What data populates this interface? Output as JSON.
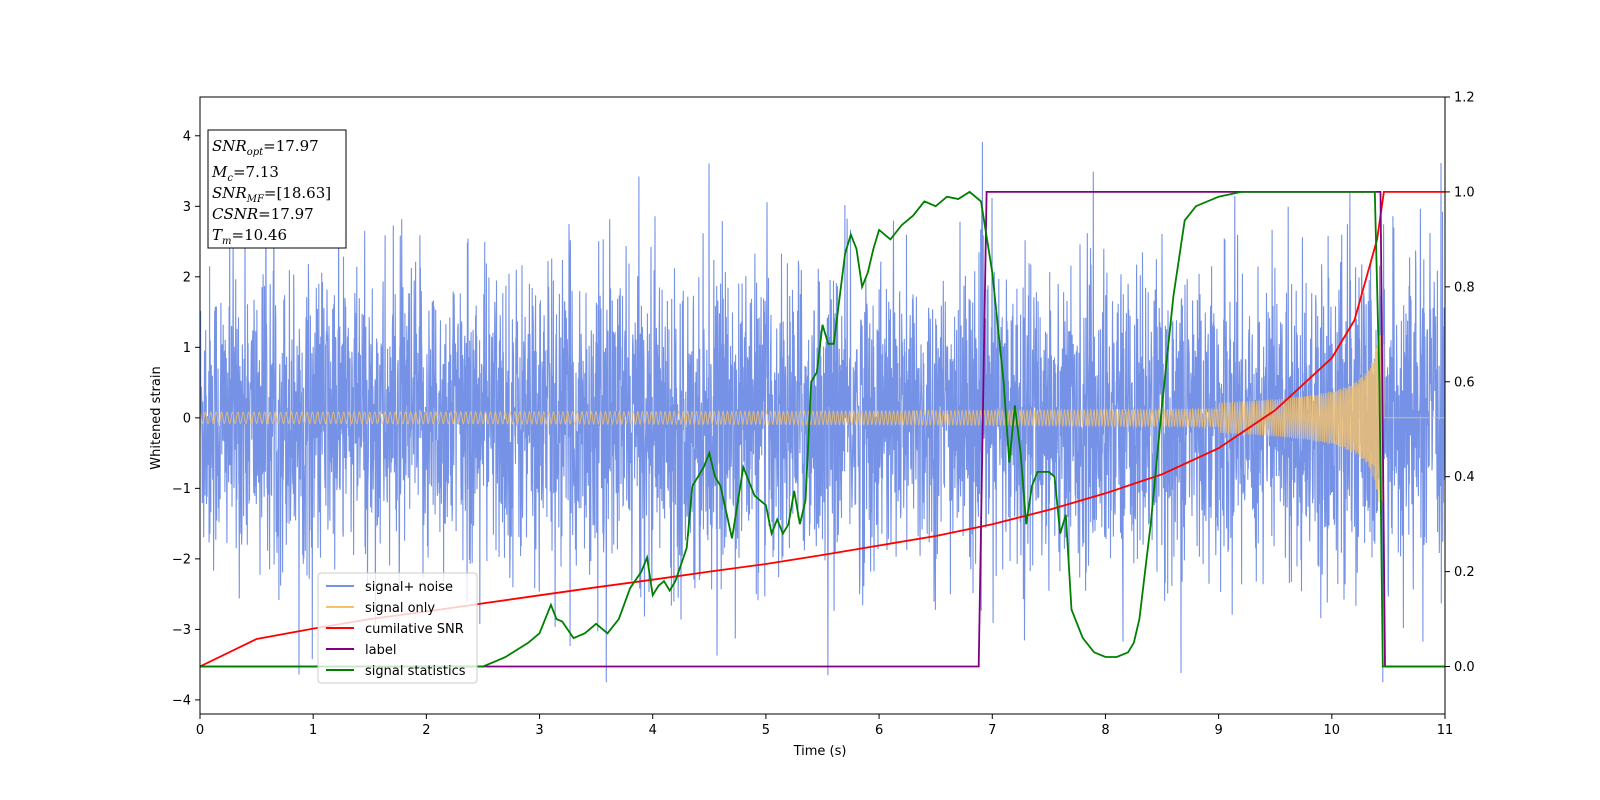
{
  "chart_data": {
    "type": "line",
    "xlabel": "Time (s)",
    "ylabel": "Whitened strain",
    "xlim": [
      0,
      11
    ],
    "ylim": [
      -4.2,
      4.55
    ],
    "y2lim": [
      -0.1,
      1.2
    ],
    "x_ticks": [
      0,
      1,
      2,
      3,
      4,
      5,
      6,
      7,
      8,
      9,
      10,
      11
    ],
    "y_ticks": [
      -4,
      -3,
      -2,
      -1,
      0,
      1,
      2,
      3,
      4
    ],
    "y2_ticks": [
      0.0,
      0.2,
      0.4,
      0.6,
      0.8,
      1.0,
      1.2
    ],
    "grid": false,
    "legend_position": "lower-left",
    "stats": {
      "snr_opt": {
        "sym": "SNR",
        "sub": "opt",
        "value": "=17.97"
      },
      "mc": {
        "sym": "M",
        "sub": "c",
        "value": "=7.13"
      },
      "snr_mf": {
        "sym": "SNR",
        "sub": "MF",
        "value": "=[18.63]"
      },
      "csnr": {
        "sym": "CSNR",
        "sub": "",
        "value": "=17.97"
      },
      "tm": {
        "sym": "T",
        "sub": "m",
        "value": "=10.46"
      }
    },
    "series": [
      {
        "name": "signal+ noise",
        "axis": "left",
        "color": "#7592e6",
        "description_values": "whitened noise with std ~1.1, range about -3.7 to 4.2 over 0–11 s plus chirp"
      },
      {
        "name": "signal only",
        "axis": "left",
        "color": "#f5c26b",
        "chirp": {
          "t_merge": 10.46,
          "amp_start": 0.08,
          "amp_end": 1.2
        }
      },
      {
        "name": "cumilative SNR",
        "axis": "right",
        "color": "#ff0000",
        "x": [
          0,
          0.5,
          1,
          1.5,
          2,
          2.5,
          3,
          3.5,
          4,
          4.5,
          5,
          5.5,
          6,
          6.5,
          7,
          7.5,
          8,
          8.5,
          9,
          9.5,
          10,
          10.2,
          10.4,
          10.46,
          11
        ],
        "y": [
          0.0,
          0.058,
          0.08,
          0.1,
          0.116,
          0.133,
          0.15,
          0.167,
          0.183,
          0.2,
          0.216,
          0.235,
          0.255,
          0.275,
          0.3,
          0.33,
          0.365,
          0.405,
          0.46,
          0.54,
          0.65,
          0.73,
          0.9,
          1.0,
          1.0
        ]
      },
      {
        "name": "label",
        "axis": "right",
        "color": "#800080",
        "x": [
          0,
          6.88,
          6.95,
          10.43,
          10.47,
          11
        ],
        "y": [
          0,
          0,
          1,
          1,
          0,
          0
        ]
      },
      {
        "name": "signal statistics",
        "axis": "right",
        "color": "#008000",
        "x": [
          0,
          2.5,
          2.6,
          2.7,
          2.8,
          2.9,
          3.0,
          3.1,
          3.15,
          3.2,
          3.3,
          3.4,
          3.5,
          3.6,
          3.7,
          3.8,
          3.9,
          3.95,
          4.0,
          4.05,
          4.1,
          4.15,
          4.2,
          4.3,
          4.35,
          4.4,
          4.45,
          4.5,
          4.55,
          4.6,
          4.7,
          4.8,
          4.9,
          5.0,
          5.05,
          5.1,
          5.15,
          5.2,
          5.25,
          5.3,
          5.35,
          5.4,
          5.45,
          5.5,
          5.55,
          5.6,
          5.7,
          5.75,
          5.8,
          5.85,
          5.9,
          5.95,
          6.0,
          6.1,
          6.2,
          6.3,
          6.4,
          6.5,
          6.6,
          6.7,
          6.8,
          6.9,
          7.0,
          7.1,
          7.15,
          7.2,
          7.25,
          7.3,
          7.35,
          7.4,
          7.5,
          7.55,
          7.6,
          7.65,
          7.7,
          7.8,
          7.9,
          8.0,
          8.1,
          8.2,
          8.25,
          8.3,
          8.4,
          8.5,
          8.6,
          8.7,
          8.8,
          9.0,
          9.2,
          9.4,
          9.6,
          9.8,
          10.0,
          10.2,
          10.3,
          10.38,
          10.42,
          10.45,
          10.5,
          11
        ],
        "y": [
          0.0,
          0.0,
          0.01,
          0.02,
          0.035,
          0.05,
          0.07,
          0.13,
          0.1,
          0.095,
          0.06,
          0.07,
          0.09,
          0.07,
          0.1,
          0.165,
          0.2,
          0.23,
          0.15,
          0.17,
          0.18,
          0.16,
          0.18,
          0.25,
          0.38,
          0.4,
          0.42,
          0.45,
          0.4,
          0.38,
          0.27,
          0.42,
          0.36,
          0.34,
          0.28,
          0.31,
          0.28,
          0.3,
          0.37,
          0.3,
          0.35,
          0.6,
          0.62,
          0.72,
          0.68,
          0.68,
          0.87,
          0.91,
          0.88,
          0.8,
          0.83,
          0.88,
          0.92,
          0.9,
          0.93,
          0.95,
          0.98,
          0.97,
          0.99,
          0.985,
          1.0,
          0.98,
          0.83,
          0.6,
          0.43,
          0.55,
          0.45,
          0.3,
          0.38,
          0.41,
          0.41,
          0.4,
          0.28,
          0.32,
          0.12,
          0.06,
          0.03,
          0.02,
          0.02,
          0.03,
          0.05,
          0.1,
          0.3,
          0.55,
          0.78,
          0.94,
          0.97,
          0.99,
          1.0,
          1.0,
          1.0,
          1.0,
          1.0,
          1.0,
          1.0,
          1.0,
          0.6,
          0.0,
          0.0,
          0.0
        ]
      }
    ]
  }
}
